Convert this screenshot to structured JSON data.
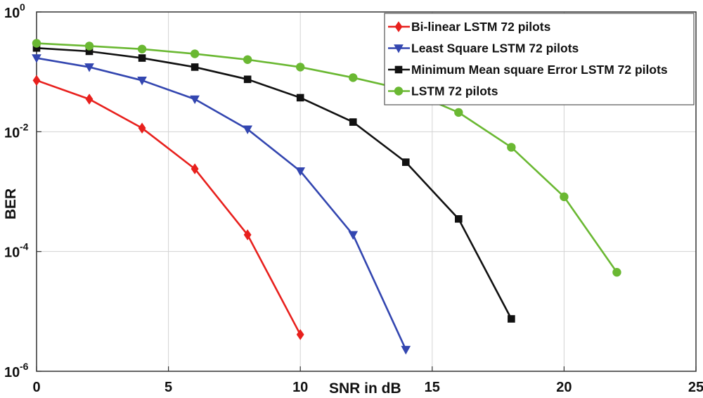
{
  "chart_data": {
    "type": "line",
    "xlabel": "SNR in dB",
    "ylabel": "BER",
    "xlim": [
      0,
      25
    ],
    "ylim": [
      1e-06,
      1
    ],
    "yscale": "log",
    "grid": true,
    "legend_position": "top-right",
    "x_ticks": [
      "0",
      "5",
      "10",
      "15",
      "20",
      "25"
    ],
    "y_ticks": [
      {
        "value": 1,
        "base": "10",
        "exp": "0"
      },
      {
        "value": 0.01,
        "base": "10",
        "exp": "-2"
      },
      {
        "value": 0.0001,
        "base": "10",
        "exp": "-4"
      },
      {
        "value": 1e-06,
        "base": "10",
        "exp": "-6"
      }
    ],
    "series": [
      {
        "name": "Bi-linear LSTM 72 pilots",
        "color": "#e8201d",
        "marker": "diamond",
        "x": [
          0,
          2,
          4,
          6,
          8,
          10
        ],
        "y": [
          0.072,
          0.035,
          0.0115,
          0.0024,
          0.00019,
          4.1e-06
        ]
      },
      {
        "name": "Least Square LSTM 72 pilots",
        "color": "#3346b0",
        "marker": "triangle-down",
        "x": [
          0,
          2,
          4,
          6,
          8,
          10,
          12,
          14
        ],
        "y": [
          0.17,
          0.12,
          0.072,
          0.035,
          0.011,
          0.0022,
          0.00019,
          2.3e-06
        ]
      },
      {
        "name": "Minimum Mean square Error  LSTM 72 pilots",
        "color": "#111111",
        "marker": "square",
        "x": [
          0,
          2,
          4,
          6,
          8,
          10,
          12,
          14,
          16,
          18
        ],
        "y": [
          0.25,
          0.22,
          0.17,
          0.12,
          0.075,
          0.037,
          0.0145,
          0.0031,
          0.00035,
          7.5e-06
        ]
      },
      {
        "name": "LSTM 72 pilots",
        "color": "#6ab832",
        "marker": "circle",
        "x": [
          0,
          2,
          4,
          6,
          8,
          10,
          12,
          14,
          16,
          18,
          20,
          22
        ],
        "y": [
          0.3,
          0.27,
          0.24,
          0.2,
          0.16,
          0.12,
          0.08,
          0.05,
          0.021,
          0.0055,
          0.00082,
          4.5e-05
        ]
      }
    ]
  }
}
